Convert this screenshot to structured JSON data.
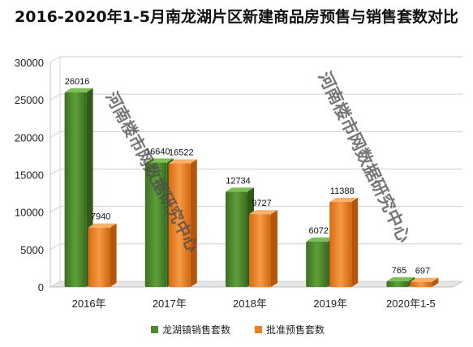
{
  "chart_data": {
    "type": "bar",
    "title": "2016-2020年1-5月南龙湖片区新建商品房预售与销售套数对比",
    "categories": [
      "2016年",
      "2017年",
      "2018年",
      "2019年",
      "2020年1-5"
    ],
    "series": [
      {
        "name": "龙湖镇销售套数",
        "values": [
          26016,
          16640,
          12734,
          6072,
          765
        ],
        "labels": [
          "26016",
          "16640",
          "12734",
          "6072",
          "765"
        ],
        "color": "#4e8a2e"
      },
      {
        "name": "批准预售套数",
        "values": [
          7940,
          16522,
          9727,
          11388,
          697
        ],
        "labels": [
          "7940",
          "16522",
          "9727",
          "11388",
          "697"
        ],
        "color": "#f07f1f"
      }
    ],
    "ylim": [
      0,
      30000
    ],
    "yticks": [
      0,
      5000,
      10000,
      15000,
      20000,
      25000,
      30000
    ],
    "grid": true,
    "legend_position": "bottom"
  },
  "watermark": {
    "text": "河南楼市网数据研究中心"
  }
}
